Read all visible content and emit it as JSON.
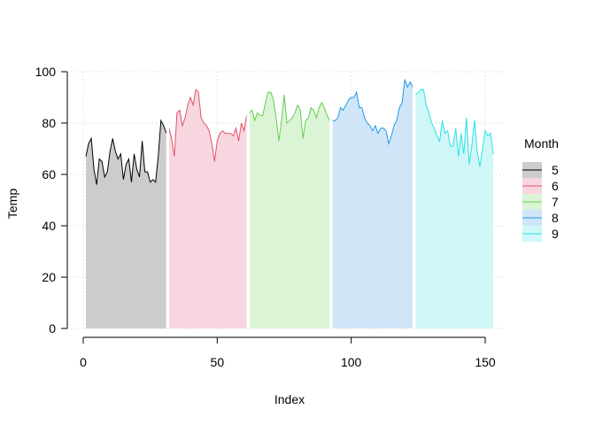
{
  "chart_data": {
    "type": "area",
    "xlabel": "Index",
    "ylabel": "Temp",
    "xlim": [
      0,
      155
    ],
    "ylim": [
      0,
      100
    ],
    "x_ticks": [
      0,
      50,
      100,
      150
    ],
    "y_ticks": [
      0,
      20,
      40,
      60,
      80,
      100
    ],
    "grid": true,
    "legend": {
      "title": "Month",
      "placement": "right"
    },
    "series": [
      {
        "name": "5",
        "line_color": "#000000",
        "fill_color": "#cccccc",
        "x_start": 1,
        "values": [
          67,
          72,
          74,
          62,
          56,
          66,
          65,
          59,
          61,
          69,
          74,
          69,
          66,
          68,
          58,
          64,
          66,
          57,
          68,
          62,
          59,
          73,
          61,
          61,
          57,
          58,
          57,
          67,
          81,
          79,
          76
        ]
      },
      {
        "name": "6",
        "line_color": "#df536b",
        "fill_color": "#f8d6df",
        "x_start": 32,
        "values": [
          78,
          74,
          67,
          84,
          85,
          79,
          82,
          87,
          90,
          87,
          93,
          92,
          82,
          80,
          79,
          77,
          72,
          65,
          73,
          76,
          77,
          76,
          76,
          76,
          75,
          78,
          73,
          80,
          77,
          83
        ]
      },
      {
        "name": "7",
        "line_color": "#61d04f",
        "fill_color": "#dcf4d6",
        "x_start": 62,
        "values": [
          84,
          85,
          81,
          84,
          83,
          83,
          88,
          92,
          92,
          89,
          82,
          73,
          81,
          91,
          80,
          81,
          82,
          84,
          87,
          85,
          74,
          81,
          82,
          86,
          85,
          82,
          86,
          88,
          86,
          83,
          81
        ]
      },
      {
        "name": "8",
        "line_color": "#2297e6",
        "fill_color": "#d0e6f8",
        "x_start": 93,
        "values": [
          81,
          81,
          82,
          86,
          85,
          87,
          89,
          90,
          90,
          92,
          86,
          86,
          82,
          80,
          79,
          77,
          79,
          76,
          78,
          78,
          77,
          72,
          75,
          79,
          81,
          86,
          88,
          97,
          94,
          96,
          94
        ]
      },
      {
        "name": "9",
        "line_color": "#28e2e5",
        "fill_color": "#d0f7f8",
        "x_start": 124,
        "values": [
          91,
          92,
          93,
          93,
          87,
          84,
          80,
          78,
          75,
          73,
          81,
          76,
          77,
          71,
          71,
          78,
          67,
          76,
          68,
          82,
          64,
          71,
          81,
          69,
          63,
          70,
          77,
          75,
          76,
          68
        ]
      }
    ]
  }
}
